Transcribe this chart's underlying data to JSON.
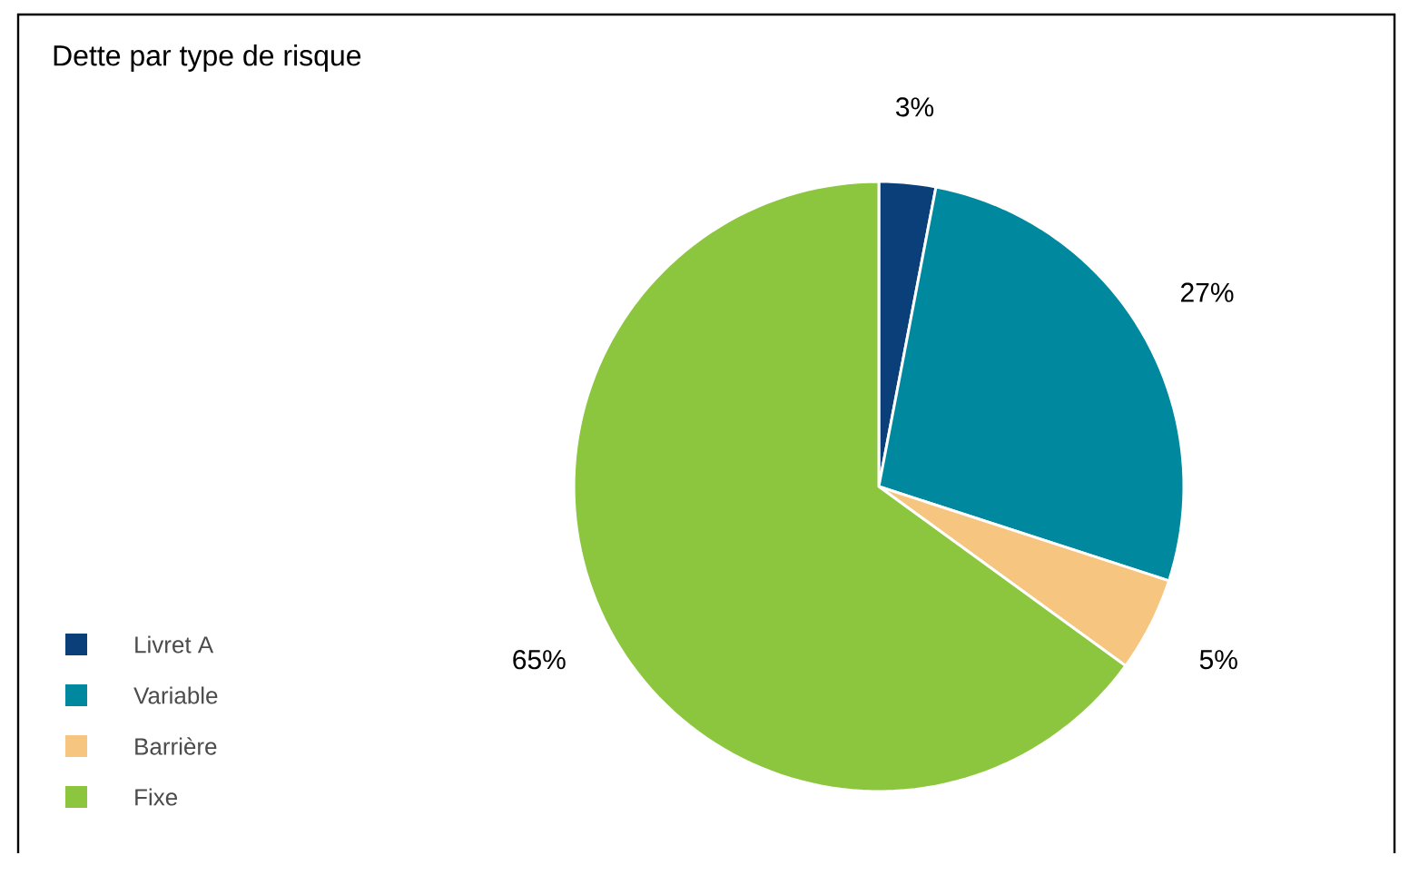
{
  "chart_data": {
    "type": "pie",
    "title": "Dette par type de risque",
    "categories": [
      "Livret A",
      "Variable",
      "Barrière",
      "Fixe"
    ],
    "values": [
      3,
      27,
      5,
      65
    ],
    "colors": [
      "#0a3f7a",
      "#00889e",
      "#f6c680",
      "#8cc63e"
    ],
    "value_labels": [
      "3%",
      "27%",
      "5%",
      "65%"
    ],
    "legend": "bottom left"
  }
}
